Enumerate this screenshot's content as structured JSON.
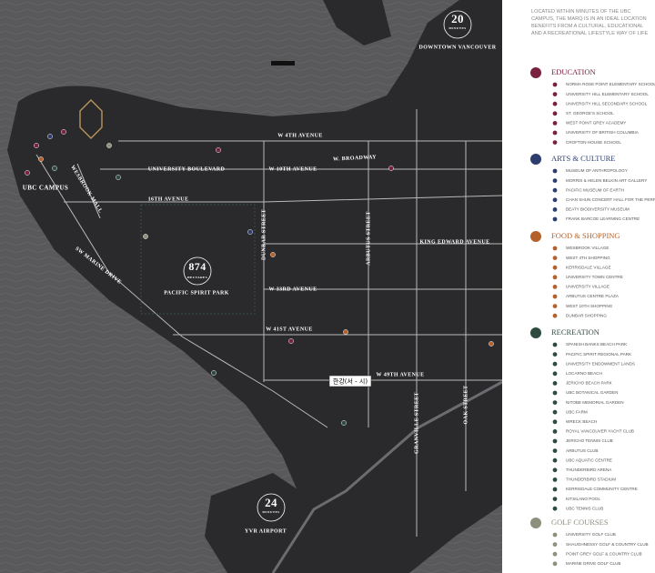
{
  "map": {
    "labels": [
      "20",
      "MINUTES",
      "DOWNTOWN VANCOUVER",
      "UBC CAMPUS",
      "W 4TH AVENUE",
      "W. BROADWAY",
      "UNIVERSITY BOULEVARD",
      "W 10TH AVENUE",
      "16TH AVENUE",
      "KING EDWARD AVENUE",
      "DUNBAR STREET",
      "ARBUTUS STREET",
      "WESBROOK MALL",
      "SW MARINE DRIVE",
      "874",
      "HECTARES",
      "PACIFIC SPIRIT PARK",
      "W 33RD AVENUE",
      "W 41ST AVENUE",
      "W 49TH AVENUE",
      "GRANVILLE STREET",
      "OAK STREET",
      "24",
      "MINUTES",
      "YVR AIRPORT"
    ],
    "tooltip": "한강(서 - 시)"
  },
  "panel": {
    "intro": "LOCATED WITHIN MINUTES OF THE UBC CAMPUS, THE MARQ IS IN AN IDEAL LOCATION BENEFITS FROM A CULTURAL, EDUCATIONAL AND A RECREATIONAL LIFESTYLE WAY OF LIFE",
    "sections": [
      {
        "title": "EDUCATION",
        "color": "#7a2040",
        "items": [
          "NORMA ROSE POINT ELEMENTARY SCHOOL",
          "UNIVERSITY HILL ELEMENTARY SCHOOL",
          "UNIVERSITY HILL SECONDARY SCHOOL",
          "ST. GEORGE'S SCHOOL",
          "WEST POINT GREY ACADEMY",
          "UNIVERSITY OF BRITISH COLUMBIA",
          "CROFTON HOUSE SCHOOL"
        ]
      },
      {
        "title": "ARTS & CULTURE",
        "color": "#2c3d6e",
        "items": [
          "MUSEUM OF ANTHROPOLOGY",
          "MORRIS & HELEN BELKIN ART GALLERY",
          "PACIFIC MUSEUM OF EARTH",
          "CHAN SHUN CONCERT HALL FOR THE PERFORMING ARTS",
          "BEATY BIODIVERSITY MUSEUM",
          "FRANK BARCOE LEARNING CENTRE"
        ]
      },
      {
        "title": "FOOD & SHOPPING",
        "color": "#b4612c",
        "items": [
          "WESBROOK VILLAGE",
          "WEST 4TH SHOPPING",
          "KERRISDALE VILLAGE",
          "UNIVERSITY TOWN CENTRE",
          "UNIVERSITY VILLAGE",
          "ARBUTUS CENTRE PLAZA",
          "WEST 10TH SHOPPING",
          "DUNBAR SHOPPING"
        ]
      },
      {
        "title": "RECREATION",
        "color": "#2d4b3f",
        "items": [
          "SPANISH BANKS BEACH PARK",
          "PACIFIC SPIRIT REGIONAL PARK",
          "UNIVERSITY ENDOWMENT LANDS",
          "LOCARNO BEACH",
          "JERICHO BEACH PARK",
          "UBC BOTANICAL GARDEN",
          "NITOBE MEMORIAL GARDEN",
          "UBC FARM",
          "WRECK BEACH",
          "ROYAL VANCOUVER YACHT CLUB",
          "JERICHO TENNIS CLUB",
          "ARBUTUS CLUB",
          "UBC AQUATIC CENTRE",
          "THUNDERBIRD ARENA",
          "THUNDERBIRD STADIUM",
          "KERRISDALE COMMUNITY CENTRE",
          "KITSILANO POOL",
          "UBC TENNIS CLUB"
        ]
      },
      {
        "title": "GOLF COURSES",
        "color": "#8c907c",
        "items": [
          "UNIVERSITY GOLF CLUB",
          "SHAUGHNESSY GOLF & COUNTRY CLUB",
          "POINT GREY GOLF & COUNTRY CLUB",
          "MARINE DRIVE GOLF CLUB"
        ]
      }
    ]
  }
}
